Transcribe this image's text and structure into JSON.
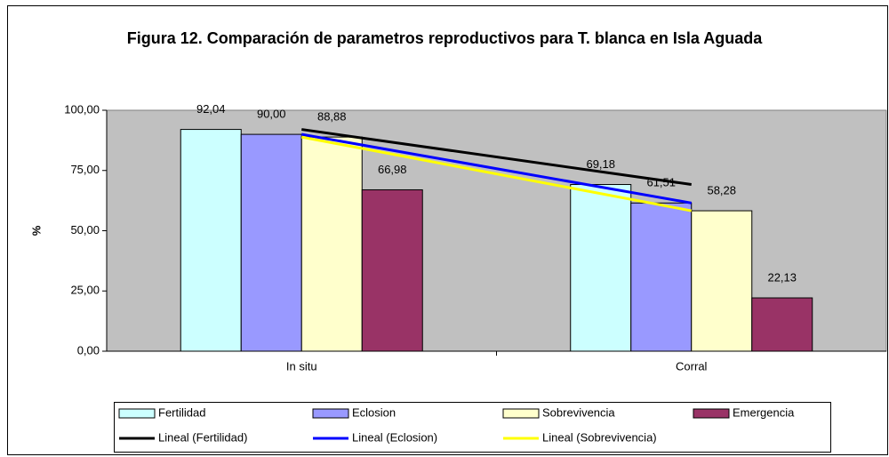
{
  "chart_data": {
    "type": "bar",
    "title": "Figura 12. Comparación de parametros reproductivos para T. blanca en Isla Aguada",
    "ylabel": "%",
    "categories": [
      "In situ",
      "Corral"
    ],
    "series": [
      {
        "name": "Fertilidad",
        "color": "#ccffff",
        "values": [
          92.04,
          69.18
        ],
        "value_labels": [
          "92,04",
          "69,18"
        ],
        "trendline": {
          "name": "Lineal (Fertilidad)",
          "color": "#000000"
        }
      },
      {
        "name": "Eclosion",
        "color": "#9999ff",
        "values": [
          90.0,
          61.51
        ],
        "value_labels": [
          "90,00",
          "61,51"
        ],
        "trendline": {
          "name": "Lineal (Eclosion)",
          "color": "#0000ff"
        }
      },
      {
        "name": "Sobrevivencia",
        "color": "#ffffcc",
        "values": [
          88.88,
          58.28
        ],
        "value_labels": [
          "88,88",
          "58,28"
        ],
        "trendline": {
          "name": "Lineal (Sobrevivencia)",
          "color": "#ffff00"
        }
      },
      {
        "name": "Emergencia",
        "color": "#993366",
        "values": [
          66.98,
          22.13
        ],
        "value_labels": [
          "66,98",
          "22,13"
        ]
      }
    ],
    "ylim": [
      0,
      100
    ],
    "yticks": [
      {
        "value": 0,
        "label": "0,00"
      },
      {
        "value": 25,
        "label": "25,00"
      },
      {
        "value": 50,
        "label": "50,00"
      },
      {
        "value": 75,
        "label": "75,00"
      },
      {
        "value": 100,
        "label": "100,00"
      }
    ],
    "grid": false,
    "legend": "bottom",
    "plot_background": "#c0c0c0"
  }
}
